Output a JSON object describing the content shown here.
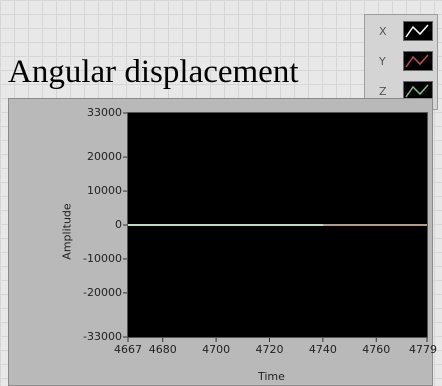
{
  "title": "Angular displacement",
  "legend": [
    {
      "name": "X",
      "color": "#ffffff"
    },
    {
      "name": "Y",
      "color": "#c0504d"
    },
    {
      "name": "Z",
      "color": "#7fbf7f"
    }
  ],
  "chart_data": {
    "type": "line",
    "xlabel": "Time",
    "ylabel": "Amplitude",
    "xlim": [
      4667,
      4779
    ],
    "ylim": [
      -33000,
      33000
    ],
    "xticks": [
      "4667",
      "4680",
      "4700",
      "4720",
      "4740",
      "4760",
      "4779"
    ],
    "yticks": [
      "33000",
      "20000",
      "10000",
      "0",
      "-10000",
      "-20000",
      "-33000"
    ],
    "grid": false,
    "series": [
      {
        "name": "X",
        "color": "#ffffff",
        "x": [
          4667,
          4779
        ],
        "y": [
          0,
          0
        ]
      },
      {
        "name": "Y",
        "color": "#c0504d",
        "x": [
          4740,
          4779
        ],
        "y": [
          0,
          0
        ]
      },
      {
        "name": "Z",
        "color": "#7fbf7f",
        "x": [
          4667,
          4779
        ],
        "y": [
          0,
          0
        ]
      }
    ]
  }
}
